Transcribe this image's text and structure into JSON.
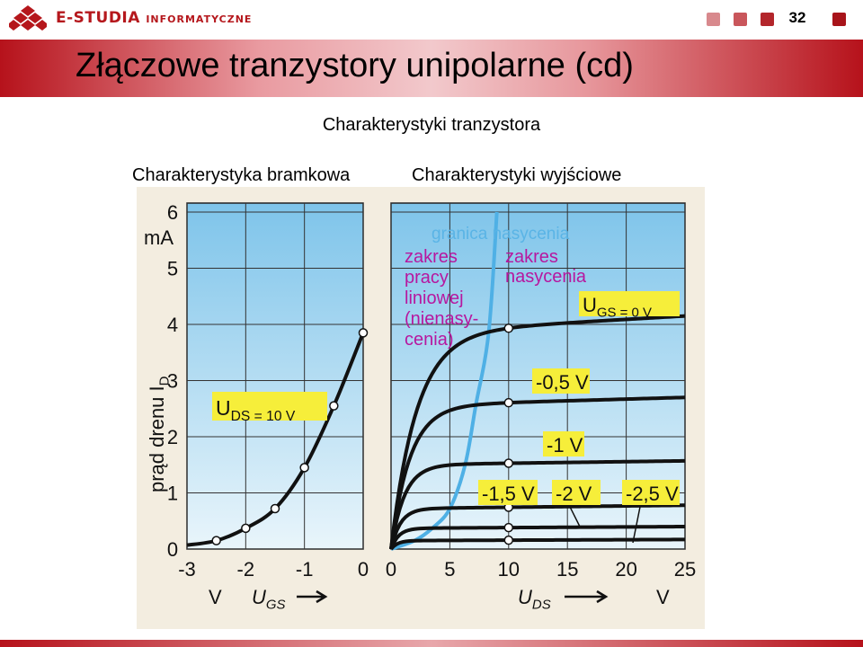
{
  "header": {
    "brand_main": "E-STUDIA",
    "brand_sub": "INFORMATYCZNE",
    "page_number": "32",
    "square_colors": [
      "#d8898d",
      "#c9565b",
      "#b3262b",
      "#a8141a"
    ]
  },
  "slide": {
    "title": "Złączowe tranzystory unipolarne (cd)",
    "subtitle": "Charakterystyki tranzystora",
    "caption_left": "Charakterystyka bramkowa",
    "caption_right": "Charakterystyki wyjściowe"
  },
  "chart_data": [
    {
      "type": "line",
      "ylabel": "prąd drenu I_D",
      "y_unit": "mA",
      "x_unit": "V",
      "xlabel": "U_GS",
      "x_ticks": [
        "-3",
        "-2",
        "-1",
        "0"
      ],
      "y_ticks": [
        "0",
        "1",
        "2",
        "3",
        "4",
        "5",
        "6"
      ],
      "xlim": [
        -3,
        0
      ],
      "ylim": [
        0,
        6
      ],
      "grid": true,
      "annotation": "U_DS = 10 V",
      "series": [
        {
          "x": [
            -3.0,
            -2.5,
            -2.0,
            -1.5,
            -1.0,
            -0.5,
            0.0
          ],
          "y": [
            0.07,
            0.15,
            0.37,
            0.72,
            1.45,
            2.55,
            3.85
          ],
          "markers_x": [
            -2.5,
            -2.0,
            -1.5,
            -1.0,
            -0.5,
            0.0
          ]
        }
      ]
    },
    {
      "type": "line",
      "xlabel": "U_DS",
      "x_unit": "V",
      "x_ticks": [
        "0",
        "5",
        "10",
        "15",
        "20",
        "25"
      ],
      "xlim": [
        0,
        25
      ],
      "ylim": [
        0,
        6
      ],
      "grid": true,
      "annotations": [
        "granica nasycenia",
        "zakres pracy liniowej (nienasy- cenia)",
        "zakres nasycenia"
      ],
      "series": [
        {
          "name": "U_GS = 0 V",
          "saturation_current": 3.85,
          "end_current": 4.15,
          "marker_at": 10
        },
        {
          "name": "-0,5 V",
          "saturation_current": 2.55,
          "end_current": 2.7,
          "marker_at": 10
        },
        {
          "name": "-1 V",
          "saturation_current": 1.5,
          "end_current": 1.57,
          "marker_at": 10
        },
        {
          "name": "-1,5 V",
          "saturation_current": 0.72,
          "end_current": 0.78,
          "marker_at": 10
        },
        {
          "name": "-2 V",
          "saturation_current": 0.37,
          "end_current": 0.4,
          "marker_at": 10
        },
        {
          "name": "-2,5 V",
          "saturation_current": 0.15,
          "end_current": 0.17,
          "marker_at": 10
        }
      ],
      "saturation_boundary": {
        "x": [
          0,
          2,
          3.5,
          5,
          6.3,
          7.2,
          8.3,
          9
        ],
        "y": [
          0,
          0.15,
          0.37,
          0.72,
          1.5,
          2.55,
          3.85,
          6
        ]
      }
    }
  ]
}
